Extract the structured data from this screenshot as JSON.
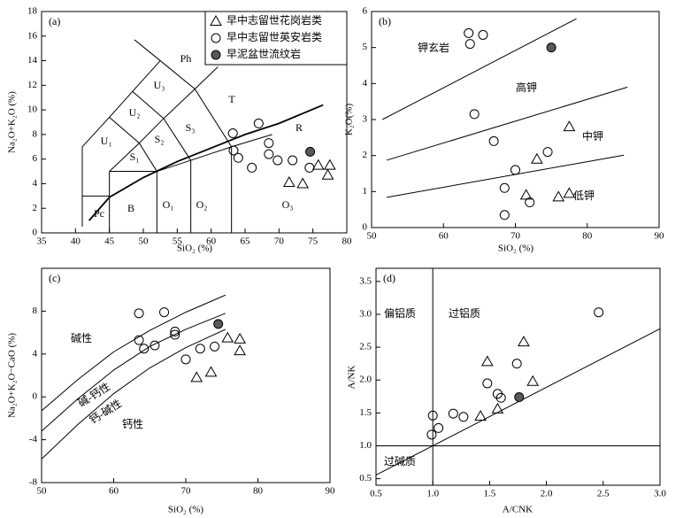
{
  "chart_data": [
    {
      "type": "scatter",
      "panel_label": "(a)",
      "x_label": "SiO₂ (%)",
      "y_label": "Na₂O+K₂O (%)",
      "xlim": [
        35,
        80
      ],
      "xticks": [
        35,
        40,
        45,
        50,
        55,
        60,
        65,
        70,
        75,
        80
      ],
      "ylim": [
        0,
        18
      ],
      "yticks": [
        0,
        2,
        4,
        6,
        8,
        10,
        12,
        14,
        16,
        18
      ],
      "legend": "top-right",
      "annotations": [
        "Ph",
        "U₃",
        "U₂",
        "U₁",
        "S₂",
        "S₁",
        "S₃",
        "T",
        "R",
        "Pc",
        "B",
        "O₁",
        "O₂",
        "O₃"
      ],
      "lines": [
        {
          "x": [
            41,
            41,
            45,
            48.4,
            52.5
          ],
          "y": [
            0.5,
            7,
            9.4,
            11.5,
            14
          ]
        },
        {
          "x": [
            41,
            45
          ],
          "y": [
            3,
            3
          ]
        },
        {
          "x": [
            45,
            45,
            52,
            52
          ],
          "y": [
            0,
            5,
            5,
            0
          ]
        },
        {
          "x": [
            52,
            57,
            63,
            69
          ],
          "y": [
            5,
            5.9,
            7,
            8
          ]
        },
        {
          "x": [
            57,
            57
          ],
          "y": [
            0,
            5.9
          ]
        },
        {
          "x": [
            63,
            63
          ],
          "y": [
            0,
            7
          ]
        },
        {
          "x": [
            45,
            49.4,
            53,
            57.6,
            61
          ],
          "y": [
            5,
            7.3,
            9.3,
            11.7,
            13.5
          ]
        },
        {
          "x": [
            52,
            49.4,
            45
          ],
          "y": [
            5,
            7.3,
            9.4
          ]
        },
        {
          "x": [
            48.4,
            53,
            57
          ],
          "y": [
            11.5,
            9.3,
            5.9
          ]
        },
        {
          "x": [
            52.5,
            57.6,
            63
          ],
          "y": [
            14,
            11.7,
            7
          ]
        },
        {
          "x": [
            48.7,
            52.5
          ],
          "y": [
            15.7,
            14
          ]
        },
        {
          "x": [
            42,
            45,
            50,
            55,
            60,
            65,
            70,
            76.5
          ],
          "y": [
            1,
            2.9,
            4.5,
            5.8,
            6.9,
            8,
            8.9,
            10.4
          ]
        }
      ],
      "series": [
        {
          "name": "早中志留世花岗岩类",
          "marker": "triangle",
          "color": "#000000",
          "fill": "none",
          "x": [
            71.5,
            73.5,
            75.8,
            77.5,
            77.2
          ],
          "values": [
            4.1,
            4,
            5.5,
            5.5,
            4.7
          ]
        },
        {
          "name": "早中志留世英安岩类",
          "marker": "circle",
          "color": "#000000",
          "fill": "none",
          "x": [
            63.2,
            63.3,
            64,
            66,
            67,
            68.5,
            68.5,
            69.8,
            72,
            74.5
          ],
          "values": [
            8.1,
            6.7,
            6.1,
            5.3,
            8.9,
            7.3,
            6.4,
            5.9,
            5.9,
            5.3
          ]
        },
        {
          "name": "早泥盆世流纹岩",
          "marker": "circle",
          "color": "#000000",
          "fill": "#595959",
          "x": [
            74.6
          ],
          "values": [
            6.6
          ]
        }
      ]
    },
    {
      "type": "scatter",
      "panel_label": "(b)",
      "x_label": "SiO₂ (%)",
      "y_label": "K₂O(%)",
      "xlim": [
        50,
        90
      ],
      "xticks": [
        50,
        60,
        70,
        80,
        90
      ],
      "ylim": [
        0,
        6
      ],
      "yticks": [
        0,
        1,
        2,
        3,
        4,
        5,
        6
      ],
      "annotations": [
        "钾玄岩",
        "高钾",
        "中钾",
        "低钾"
      ],
      "lines": [
        {
          "x": [
            51.5,
            78.5
          ],
          "y": [
            3.0,
            5.8
          ]
        },
        {
          "x": [
            52.1,
            85.6
          ],
          "y": [
            1.87,
            3.9
          ]
        },
        {
          "x": [
            52.1,
            85.1
          ],
          "y": [
            0.84,
            2.01
          ]
        }
      ],
      "series": [
        {
          "marker": "triangle",
          "color": "#000000",
          "fill": "none",
          "x": [
            71.5,
            73,
            76,
            77.5,
            77.5
          ],
          "values": [
            0.9,
            1.9,
            0.85,
            0.95,
            2.8
          ]
        },
        {
          "marker": "circle",
          "color": "#000000",
          "fill": "none",
          "x": [
            63.5,
            63.7,
            65.5,
            64.3,
            67,
            68.5,
            68.5,
            70,
            72,
            74.5
          ],
          "values": [
            5.4,
            5.1,
            5.35,
            3.15,
            2.4,
            1.1,
            0.35,
            1.6,
            0.7,
            2.1
          ]
        },
        {
          "marker": "circle",
          "color": "#000000",
          "fill": "#595959",
          "x": [
            75
          ],
          "values": [
            5.0
          ]
        }
      ]
    },
    {
      "type": "scatter",
      "panel_label": "(c)",
      "x_label": "SiO₂ (%)",
      "y_label": "Na₂O+K₂O−CaO (%)",
      "xlim": [
        50,
        90
      ],
      "xticks": [
        50,
        60,
        70,
        80,
        90
      ],
      "ylim": [
        -8,
        12
      ],
      "yticks": [
        -8,
        -4,
        0,
        4,
        8
      ],
      "annotations": [
        "碱性",
        "碱-钙性",
        "钙-碱性",
        "钙性"
      ],
      "lines": [
        {
          "x": [
            50,
            55,
            60,
            65,
            70,
            75.5
          ],
          "y": [
            -1.3,
            1.6,
            4.2,
            6.2,
            7.9,
            9.5
          ]
        },
        {
          "x": [
            50,
            55,
            60,
            65,
            70,
            75.5
          ],
          "y": [
            -3.2,
            -0.2,
            2.5,
            4.7,
            6.3,
            7.8
          ]
        },
        {
          "x": [
            50,
            55,
            60,
            65,
            70,
            75.5
          ],
          "y": [
            -5.8,
            -2.6,
            0.3,
            2.7,
            4.6,
            6.3
          ]
        }
      ],
      "series": [
        {
          "marker": "triangle",
          "color": "#000000",
          "fill": "none",
          "x": [
            71.5,
            73.5,
            75.8,
            77.5,
            77.5
          ],
          "values": [
            1.8,
            2.3,
            5.5,
            5.4,
            4.3
          ]
        },
        {
          "marker": "circle",
          "color": "#000000",
          "fill": "none",
          "x": [
            63.5,
            67,
            63.5,
            64.2,
            65.7,
            68.5,
            68.5,
            70,
            72,
            74
          ],
          "values": [
            7.8,
            7.9,
            5.3,
            4.5,
            4.8,
            6.1,
            5.8,
            3.5,
            4.5,
            4.7
          ]
        },
        {
          "marker": "circle",
          "color": "#000000",
          "fill": "#595959",
          "x": [
            74.5
          ],
          "values": [
            6.8
          ]
        }
      ]
    },
    {
      "type": "scatter",
      "panel_label": "(d)",
      "x_label": "A/CNK",
      "y_label": "A/NK",
      "xlim": [
        0.5,
        3.0
      ],
      "xticks": [
        0.5,
        {
          "value": 1,
          "label": "1.0"
        },
        1.5,
        {
          "value": 2,
          "label": "2.0"
        },
        2.5,
        {
          "value": 3,
          "label": "3.0"
        }
      ],
      "ylim": [
        0.4,
        3.7
      ],
      "yticks": [
        0.5,
        {
          "value": 1,
          "label": "1.0"
        },
        1.5,
        {
          "value": 2,
          "label": "2.0"
        },
        2.5,
        {
          "value": 3,
          "label": "3.0"
        },
        3.5
      ],
      "annotations": [
        "偏铝质",
        "过铝质",
        "过碱质"
      ],
      "lines": [
        {
          "x": [
            1,
            1
          ],
          "y": [
            0.4,
            3.7
          ]
        },
        {
          "x": [
            0.5,
            3
          ],
          "y": [
            1,
            1
          ]
        },
        {
          "x": [
            0.5,
            3
          ],
          "y": [
            0.555,
            2.78
          ]
        }
      ],
      "series": [
        {
          "marker": "triangle",
          "color": "#000000",
          "fill": "none",
          "x": [
            1.42,
            1.48,
            1.57,
            1.8,
            1.88
          ],
          "values": [
            1.45,
            2.28,
            1.56,
            2.58,
            1.98
          ]
        },
        {
          "marker": "circle",
          "color": "#000000",
          "fill": "none",
          "x": [
            0.99,
            1.0,
            1.05,
            1.18,
            1.27,
            1.48,
            1.57,
            1.6,
            1.74,
            2.46
          ],
          "values": [
            1.17,
            1.46,
            1.27,
            1.49,
            1.44,
            1.95,
            1.79,
            1.73,
            2.25,
            3.03
          ]
        },
        {
          "marker": "circle",
          "color": "#000000",
          "fill": "#595959",
          "x": [
            1.76
          ],
          "values": [
            1.74
          ]
        }
      ]
    }
  ]
}
